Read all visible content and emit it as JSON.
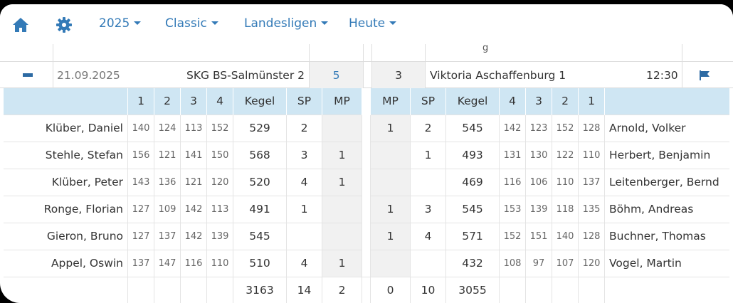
{
  "nav": {
    "home_icon": "home-icon",
    "settings_icon": "gear-icon",
    "year": "2025",
    "mode": "Classic",
    "league": "Landesligen",
    "day": "Heute",
    "accent": "#337ab7"
  },
  "match": {
    "collapse_icon": "minus-icon",
    "date": "21.09.2025",
    "home_team": "SKG BS-Salmünster 2",
    "home_score": "5",
    "away_score": "3",
    "away_team": "Viktoria Aschaffenburg 1",
    "time": "12:30",
    "report_icon": "flag-icon"
  },
  "table": {
    "headers_left": [
      "1",
      "2",
      "3",
      "4",
      "Kegel",
      "SP",
      "MP"
    ],
    "headers_right": [
      "MP",
      "SP",
      "Kegel",
      "4",
      "3",
      "2",
      "1"
    ],
    "header_color": "#cfe6f3",
    "rows": [
      {
        "home_player": "Klüber, Daniel",
        "home_sets": [
          "140",
          "124",
          "113",
          "152"
        ],
        "home_kegel": "529",
        "home_sp": "2",
        "home_mp": "",
        "away_mp": "1",
        "away_sp": "2",
        "away_kegel": "545",
        "away_sets": [
          "142",
          "123",
          "152",
          "128"
        ],
        "away_player": "Arnold, Volker"
      },
      {
        "home_player": "Stehle, Stefan",
        "home_sets": [
          "156",
          "121",
          "141",
          "150"
        ],
        "home_kegel": "568",
        "home_sp": "3",
        "home_mp": "1",
        "away_mp": "",
        "away_sp": "1",
        "away_kegel": "493",
        "away_sets": [
          "131",
          "130",
          "122",
          "110"
        ],
        "away_player": "Herbert, Benjamin"
      },
      {
        "home_player": "Klüber, Peter",
        "home_sets": [
          "143",
          "136",
          "121",
          "120"
        ],
        "home_kegel": "520",
        "home_sp": "4",
        "home_mp": "1",
        "away_mp": "",
        "away_sp": "",
        "away_kegel": "469",
        "away_sets": [
          "116",
          "106",
          "110",
          "137"
        ],
        "away_player": "Leitenberger, Bernd"
      },
      {
        "home_player": "Ronge, Florian",
        "home_sets": [
          "127",
          "109",
          "142",
          "113"
        ],
        "home_kegel": "491",
        "home_sp": "1",
        "home_mp": "",
        "away_mp": "1",
        "away_sp": "3",
        "away_kegel": "545",
        "away_sets": [
          "153",
          "139",
          "118",
          "135"
        ],
        "away_player": "Böhm, Andreas"
      },
      {
        "home_player": "Gieron, Bruno",
        "home_sets": [
          "127",
          "137",
          "142",
          "139"
        ],
        "home_kegel": "545",
        "home_sp": "",
        "home_mp": "",
        "away_mp": "1",
        "away_sp": "4",
        "away_kegel": "571",
        "away_sets": [
          "152",
          "151",
          "140",
          "128"
        ],
        "away_player": "Buchner, Thomas"
      },
      {
        "home_player": "Appel, Oswin",
        "home_sets": [
          "137",
          "147",
          "116",
          "110"
        ],
        "home_kegel": "510",
        "home_sp": "4",
        "home_mp": "1",
        "away_mp": "",
        "away_sp": "",
        "away_kegel": "432",
        "away_sets": [
          "108",
          "97",
          "107",
          "120"
        ],
        "away_player": "Vogel, Martin"
      }
    ],
    "totals": {
      "home_kegel": "3163",
      "home_sp": "14",
      "home_mp": "2",
      "away_mp": "0",
      "away_sp": "10",
      "away_kegel": "3055"
    }
  }
}
